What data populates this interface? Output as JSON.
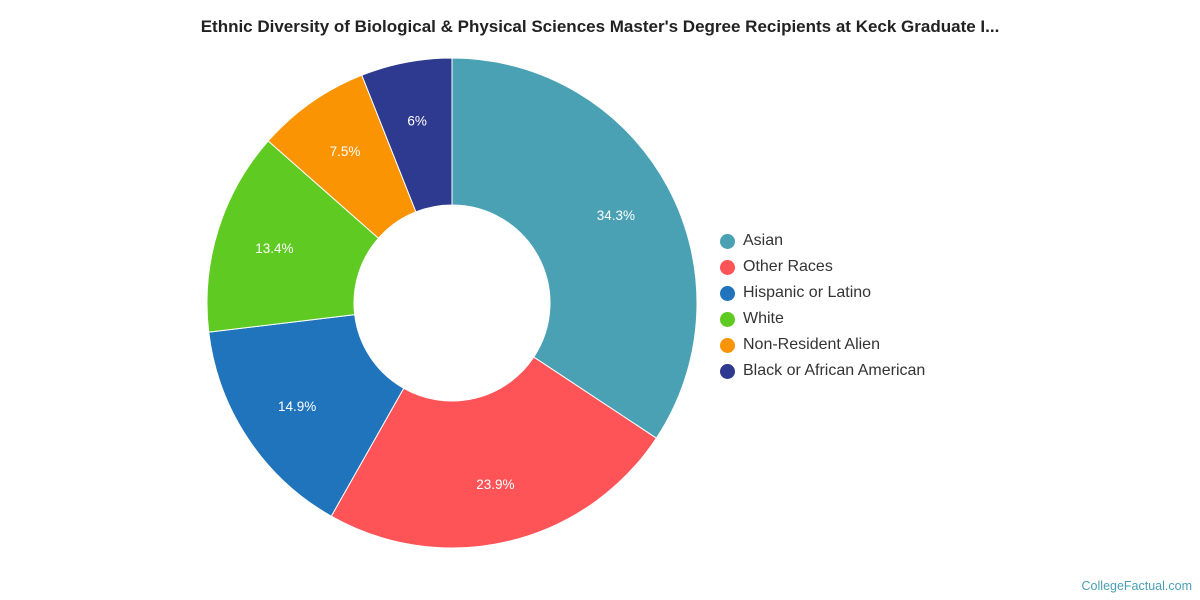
{
  "chart_data": {
    "type": "pie",
    "title": "Ethnic Diversity of Biological & Physical Sciences Master's Degree Recipients at Keck Graduate I...",
    "categories": [
      "Asian",
      "Other Races",
      "Hispanic or Latino",
      "White",
      "Non-Resident Alien",
      "Black or African American"
    ],
    "values": [
      34.3,
      23.9,
      14.9,
      13.4,
      7.5,
      6
    ],
    "data_labels": [
      "34.3%",
      "23.9%",
      "14.9%",
      "13.4%",
      "7.5%",
      "6%"
    ],
    "colors": [
      "#4aa1b4",
      "#fe5357",
      "#1f74bb",
      "#5fcb22",
      "#fb9403",
      "#2d3a8f"
    ],
    "legend_position": "right",
    "donut": true
  },
  "footer": {
    "credit": "CollegeFactual.com"
  }
}
